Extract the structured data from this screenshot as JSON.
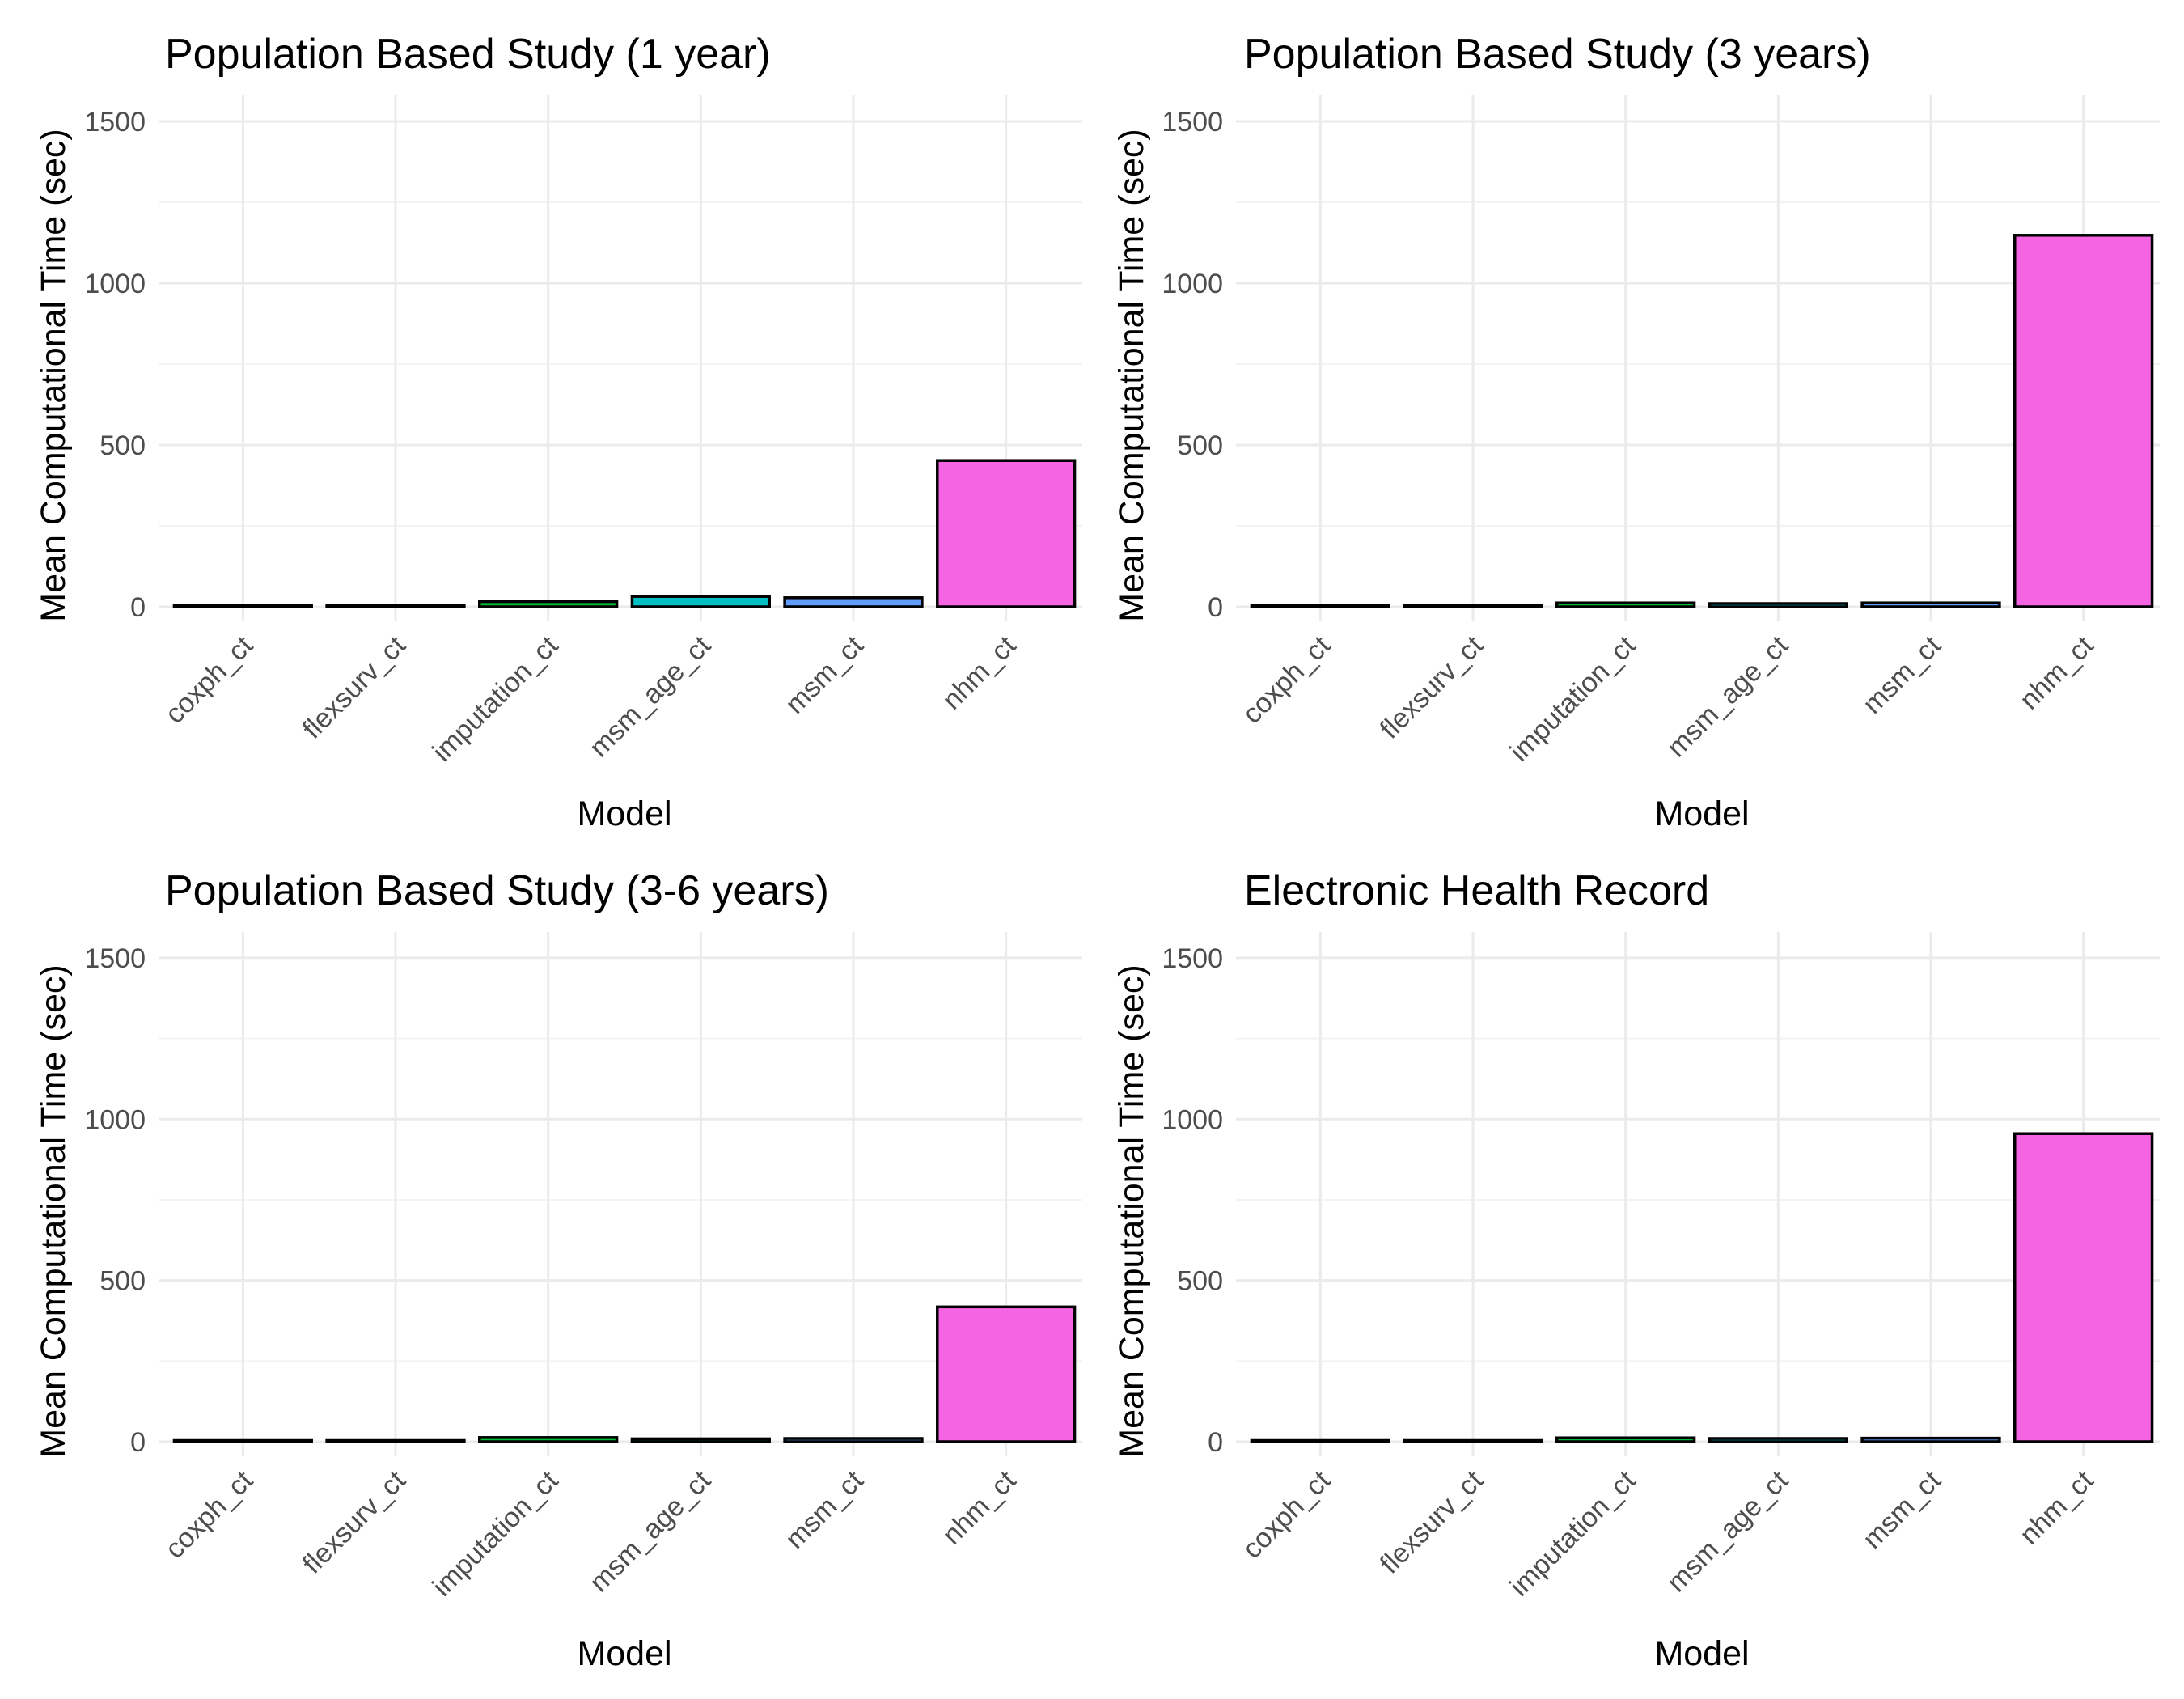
{
  "chart_data": [
    {
      "type": "bar",
      "title": "Population Based Study (1 year)",
      "xlabel": "Model",
      "ylabel": "Mean Computational Time (sec)",
      "categories": [
        "coxph_ct",
        "flexsurv_ct",
        "imputation_ct",
        "msm_age_ct",
        "msm_ct",
        "nhm_ct"
      ],
      "values": [
        1,
        1,
        16,
        32,
        28,
        452
      ],
      "colors": [
        "#F8766D",
        "#B79F00",
        "#00BA38",
        "#00BFC4",
        "#619CFF",
        "#F564E3"
      ],
      "ylim": [
        0,
        1580
      ],
      "yticks": [
        0,
        500,
        1000,
        1500
      ],
      "grid": true
    },
    {
      "type": "bar",
      "title": "Population Based Study (3 years)",
      "xlabel": "Model",
      "ylabel": "Mean Computational Time (sec)",
      "categories": [
        "coxph_ct",
        "flexsurv_ct",
        "imputation_ct",
        "msm_age_ct",
        "msm_ct",
        "nhm_ct"
      ],
      "values": [
        1,
        1,
        12,
        10,
        12,
        1148
      ],
      "colors": [
        "#F8766D",
        "#B79F00",
        "#00BA38",
        "#00BFC4",
        "#619CFF",
        "#F564E3"
      ],
      "ylim": [
        0,
        1580
      ],
      "yticks": [
        0,
        500,
        1000,
        1500
      ],
      "grid": true
    },
    {
      "type": "bar",
      "title": "Population Based Study (3-6 years)",
      "xlabel": "Model",
      "ylabel": "Mean Computational Time (sec)",
      "categories": [
        "coxph_ct",
        "flexsurv_ct",
        "imputation_ct",
        "msm_age_ct",
        "msm_ct",
        "nhm_ct"
      ],
      "values": [
        1,
        1,
        13,
        9,
        10,
        418
      ],
      "colors": [
        "#F8766D",
        "#B79F00",
        "#00BA38",
        "#00BFC4",
        "#619CFF",
        "#F564E3"
      ],
      "ylim": [
        0,
        1580
      ],
      "yticks": [
        0,
        500,
        1000,
        1500
      ],
      "grid": true
    },
    {
      "type": "bar",
      "title": "Electronic Health Record",
      "xlabel": "Model",
      "ylabel": "Mean Computational Time (sec)",
      "categories": [
        "coxph_ct",
        "flexsurv_ct",
        "imputation_ct",
        "msm_age_ct",
        "msm_ct",
        "nhm_ct"
      ],
      "values": [
        1,
        1,
        12,
        10,
        11,
        955
      ],
      "colors": [
        "#F8766D",
        "#B79F00",
        "#00BA38",
        "#00BFC4",
        "#619CFF",
        "#F564E3"
      ],
      "ylim": [
        0,
        1580
      ],
      "yticks": [
        0,
        500,
        1000,
        1500
      ],
      "grid": true
    }
  ]
}
